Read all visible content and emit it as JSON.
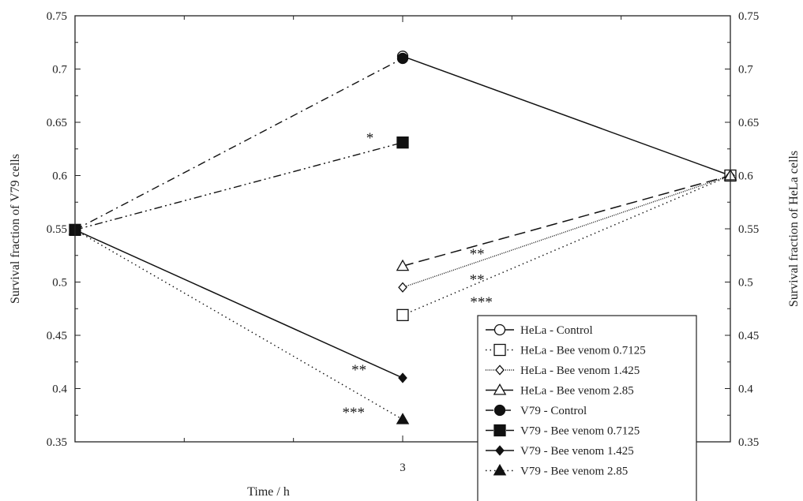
{
  "chart_data": {
    "type": "line",
    "x": [
      0,
      3,
      6
    ],
    "xlabel": "Time / h",
    "xticks": [
      "3"
    ],
    "xlim": [
      0,
      6
    ],
    "ylabel_left": "Survival fraction of V79 cells",
    "ylabel_right": "Survival fraction of HeLa cells",
    "ylim": [
      0.35,
      0.75
    ],
    "yticks": [
      "0.35",
      "0.4",
      "0.45",
      "0.5",
      "0.55",
      "0.6",
      "0.65",
      "0.7",
      "0.75"
    ],
    "grid": false,
    "legend_position": "bottom-right",
    "series": [
      {
        "name": "HeLa - Control",
        "dash": "solid",
        "marker": "circle-open",
        "points": [
          [
            3,
            0.712
          ],
          [
            6,
            0.6
          ]
        ]
      },
      {
        "name": "HeLa - Bee venom 0.7125",
        "dash": "dotted",
        "marker": "square-open",
        "points": [
          [
            3,
            0.469
          ],
          [
            6,
            0.6
          ]
        ]
      },
      {
        "name": "HeLa - Bee venom 1.425",
        "dash": "fine",
        "marker": "diamond-open",
        "points": [
          [
            3,
            0.495
          ],
          [
            6,
            0.6
          ]
        ]
      },
      {
        "name": "HeLa - Bee venom 2.85",
        "dash": "dashed",
        "marker": "triangle-open",
        "points": [
          [
            3,
            0.515
          ],
          [
            6,
            0.6
          ]
        ]
      },
      {
        "name": "V79 - Control",
        "dash": "dashdot",
        "marker": "circle-filled",
        "points": [
          [
            0,
            0.549
          ],
          [
            3,
            0.71
          ]
        ]
      },
      {
        "name": "V79 - Bee venom 0.7125",
        "dash": "dashdotdot",
        "marker": "square-filled",
        "points": [
          [
            0,
            0.549
          ],
          [
            3,
            0.631
          ]
        ]
      },
      {
        "name": "V79 - Bee venom 1.425",
        "dash": "solid",
        "marker": "diamond-filled",
        "points": [
          [
            0,
            0.549
          ],
          [
            3,
            0.41
          ]
        ]
      },
      {
        "name": "V79 -  Bee venom 2.85",
        "dash": "dotted",
        "marker": "triangle-filled",
        "points": [
          [
            0,
            0.549
          ],
          [
            3,
            0.371
          ]
        ]
      }
    ],
    "annotations": [
      {
        "text": "*",
        "x": 2.7,
        "y": 0.636
      },
      {
        "text": "**",
        "x": 3.68,
        "y": 0.527
      },
      {
        "text": "**",
        "x": 3.68,
        "y": 0.503
      },
      {
        "text": "***",
        "x": 3.72,
        "y": 0.482
      },
      {
        "text": "**",
        "x": 2.6,
        "y": 0.418
      },
      {
        "text": "***",
        "x": 2.55,
        "y": 0.378
      }
    ]
  }
}
